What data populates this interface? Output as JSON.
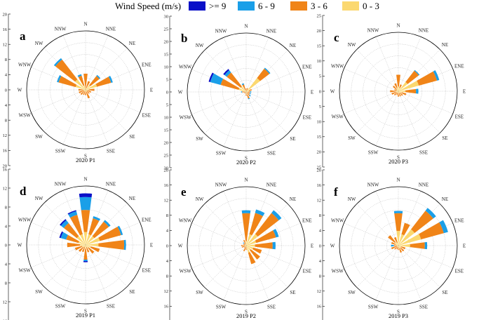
{
  "legend": {
    "title": "Wind Speed (m/s)",
    "bins": [
      {
        "label": ">= 9",
        "color": "#0a10c8"
      },
      {
        "label": "6 - 9",
        "color": "#1a9fe8"
      },
      {
        "label": "3 - 6",
        "color": "#f08418"
      },
      {
        "label": "0 - 3",
        "color": "#fbd870"
      }
    ]
  },
  "direction_labels": [
    "N",
    "NNE",
    "NE",
    "ENE",
    "E",
    "ESE",
    "SE",
    "SSE",
    "S",
    "SSW",
    "SW",
    "WSW",
    "W",
    "WNW",
    "NW",
    "NNW"
  ],
  "chart_data": [
    {
      "type": "wind-rose",
      "letter": "a",
      "caption": "2020 P1",
      "rmax": 20,
      "ticks": [
        "20",
        "16",
        "12",
        "8",
        "4",
        "0",
        "4",
        "8",
        "12",
        "16",
        "20"
      ],
      "values": [
        [
          0,
          0,
          5.5,
          0
        ],
        [
          0,
          0,
          2.5,
          0.6
        ],
        [
          0,
          0.4,
          4,
          2
        ],
        [
          0,
          0.6,
          5,
          4
        ],
        [
          0,
          0,
          2,
          1
        ],
        [
          0,
          0,
          1.4,
          0.6
        ],
        [
          0,
          0,
          1.2,
          0.5
        ],
        [
          0,
          0,
          2.2,
          0.8
        ],
        [
          0,
          0,
          1.3,
          0.5
        ],
        [
          0,
          0,
          1.2,
          0.6
        ],
        [
          0,
          0,
          1.6,
          0.6
        ],
        [
          0,
          0,
          1.8,
          0.6
        ],
        [
          0,
          0,
          1.6,
          0.8
        ],
        [
          0,
          0.6,
          6,
          3.5
        ],
        [
          0,
          0.6,
          8.5,
          4.5
        ],
        [
          0,
          0.5,
          3.5,
          1.5
        ]
      ]
    },
    {
      "type": "wind-rose",
      "letter": "b",
      "caption": "2020 P2",
      "rmax": 30,
      "ticks": [
        "30",
        "25",
        "20",
        "15",
        "10",
        "5",
        "0",
        "5",
        "10",
        "15",
        "20",
        "25",
        "30"
      ],
      "values": [
        [
          0,
          0,
          1.8,
          0
        ],
        [
          0,
          0,
          1.6,
          0.5
        ],
        [
          0,
          0.6,
          6,
          9
        ],
        [
          0,
          0,
          1.5,
          1.5
        ],
        [
          0,
          0.6,
          1.2,
          0.8
        ],
        [
          0,
          0.6,
          1.3,
          0.6
        ],
        [
          0,
          0.6,
          1.8,
          0.6
        ],
        [
          0,
          0.4,
          2,
          1.5
        ],
        [
          0,
          0,
          1.5,
          0.5
        ],
        [
          0,
          0,
          0.6,
          0.3
        ],
        [
          0,
          0,
          0.5,
          0.3
        ],
        [
          0,
          0,
          0.8,
          0.4
        ],
        [
          0,
          0.5,
          1.5,
          0.6
        ],
        [
          0.8,
          5.5,
          9.5,
          4
        ],
        [
          0.8,
          1.5,
          9,
          3.5
        ],
        [
          0,
          0.6,
          3,
          1
        ]
      ]
    },
    {
      "type": "wind-rose",
      "letter": "c",
      "caption": "2020 P3",
      "rmax": 25,
      "ticks": [
        "25",
        "20",
        "15",
        "10",
        "5",
        "0",
        "5",
        "10",
        "15",
        "20",
        "25"
      ],
      "values": [
        [
          0,
          0,
          5,
          2
        ],
        [
          0,
          0,
          1.5,
          1.5
        ],
        [
          0,
          0.4,
          6,
          5
        ],
        [
          0,
          1,
          8,
          9
        ],
        [
          0,
          1,
          4.5,
          3
        ],
        [
          0,
          0,
          2,
          1.5
        ],
        [
          0,
          0,
          1.5,
          1
        ],
        [
          0,
          0,
          1.5,
          0.8
        ],
        [
          0,
          0,
          1.5,
          0.8
        ],
        [
          0,
          0,
          1.2,
          0.5
        ],
        [
          0,
          0,
          1.5,
          0.8
        ],
        [
          0,
          0,
          2,
          1
        ],
        [
          0,
          0,
          2.5,
          1
        ],
        [
          0,
          0,
          1.2,
          0.6
        ],
        [
          0,
          0,
          2,
          1
        ],
        [
          0,
          0,
          2,
          1.5
        ]
      ]
    },
    {
      "type": "wind-rose",
      "letter": "d",
      "caption": "2019 P1",
      "rmax": 16,
      "ticks": [
        "16",
        "12",
        "8",
        "4",
        "0",
        "4",
        "8",
        "12",
        "16"
      ],
      "values": [
        [
          1,
          3.5,
          6,
          3.5
        ],
        [
          0,
          0.6,
          4.5,
          3
        ],
        [
          0,
          0.6,
          5,
          3
        ],
        [
          0,
          0.5,
          6,
          4
        ],
        [
          0,
          0.5,
          7,
          3.5
        ],
        [
          0,
          0,
          2.5,
          1.5
        ],
        [
          0,
          0,
          2,
          1
        ],
        [
          0,
          0,
          1.5,
          0.6
        ],
        [
          0.3,
          0.4,
          3,
          1
        ],
        [
          0,
          0,
          1.5,
          0.5
        ],
        [
          0,
          0,
          1.6,
          0.8
        ],
        [
          0,
          0,
          2,
          1
        ],
        [
          0,
          0,
          3.5,
          1.5
        ],
        [
          0.4,
          1.5,
          3.5,
          2
        ],
        [
          0.4,
          1,
          4.5,
          3
        ],
        [
          0.3,
          1,
          5.5,
          3
        ]
      ]
    },
    {
      "type": "wind-rose",
      "letter": "e",
      "caption": "2019 P2",
      "rmax": 20,
      "ticks": [
        "20",
        "16",
        "12",
        "8",
        "4",
        "0",
        "4",
        "8",
        "12",
        "16",
        "20"
      ],
      "values": [
        [
          0,
          1,
          9.5,
          1.5
        ],
        [
          0,
          1.2,
          7.5,
          4
        ],
        [
          0,
          1.2,
          9,
          5
        ],
        [
          0,
          1,
          7,
          3.5
        ],
        [
          0,
          1,
          6,
          3
        ],
        [
          0,
          0,
          3,
          2.5
        ],
        [
          0,
          0,
          4,
          2
        ],
        [
          0,
          0,
          4,
          2.5
        ],
        [
          0,
          0,
          1.5,
          0
        ],
        [
          0,
          0,
          1.5,
          0.5
        ],
        [
          0,
          0,
          0.6,
          0.3
        ],
        [
          0,
          0,
          1,
          0.5
        ],
        [
          0,
          0,
          1.2,
          0.5
        ],
        [
          0,
          0,
          0.5,
          0.5
        ],
        [
          0,
          0.4,
          0.6,
          0.4
        ],
        [
          0,
          0,
          1.5,
          0.5
        ]
      ]
    },
    {
      "type": "wind-rose",
      "letter": "f",
      "caption": "2019 P3",
      "rmax": 20,
      "ticks": [
        "20",
        "16",
        "12",
        "8",
        "4",
        "0",
        "4",
        "8",
        "12",
        "16",
        "20"
      ],
      "values": [
        [
          0,
          0.8,
          6,
          5
        ],
        [
          0,
          0,
          4,
          4
        ],
        [
          0,
          1.2,
          8,
          7
        ],
        [
          0,
          1.5,
          8,
          8
        ],
        [
          0,
          0.8,
          5,
          4
        ],
        [
          0,
          0,
          1.5,
          1
        ],
        [
          0,
          0,
          1.5,
          1
        ],
        [
          0,
          0,
          1.5,
          1
        ],
        [
          0,
          0,
          1,
          0.5
        ],
        [
          0,
          0,
          0.8,
          0.5
        ],
        [
          0,
          0,
          1.2,
          0.5
        ],
        [
          0,
          0,
          2,
          0.5
        ],
        [
          0,
          1,
          1,
          0.5
        ],
        [
          0,
          0,
          1.5,
          1
        ],
        [
          0,
          0,
          3,
          1.5
        ],
        [
          0,
          0,
          2,
          1
        ]
      ]
    }
  ]
}
